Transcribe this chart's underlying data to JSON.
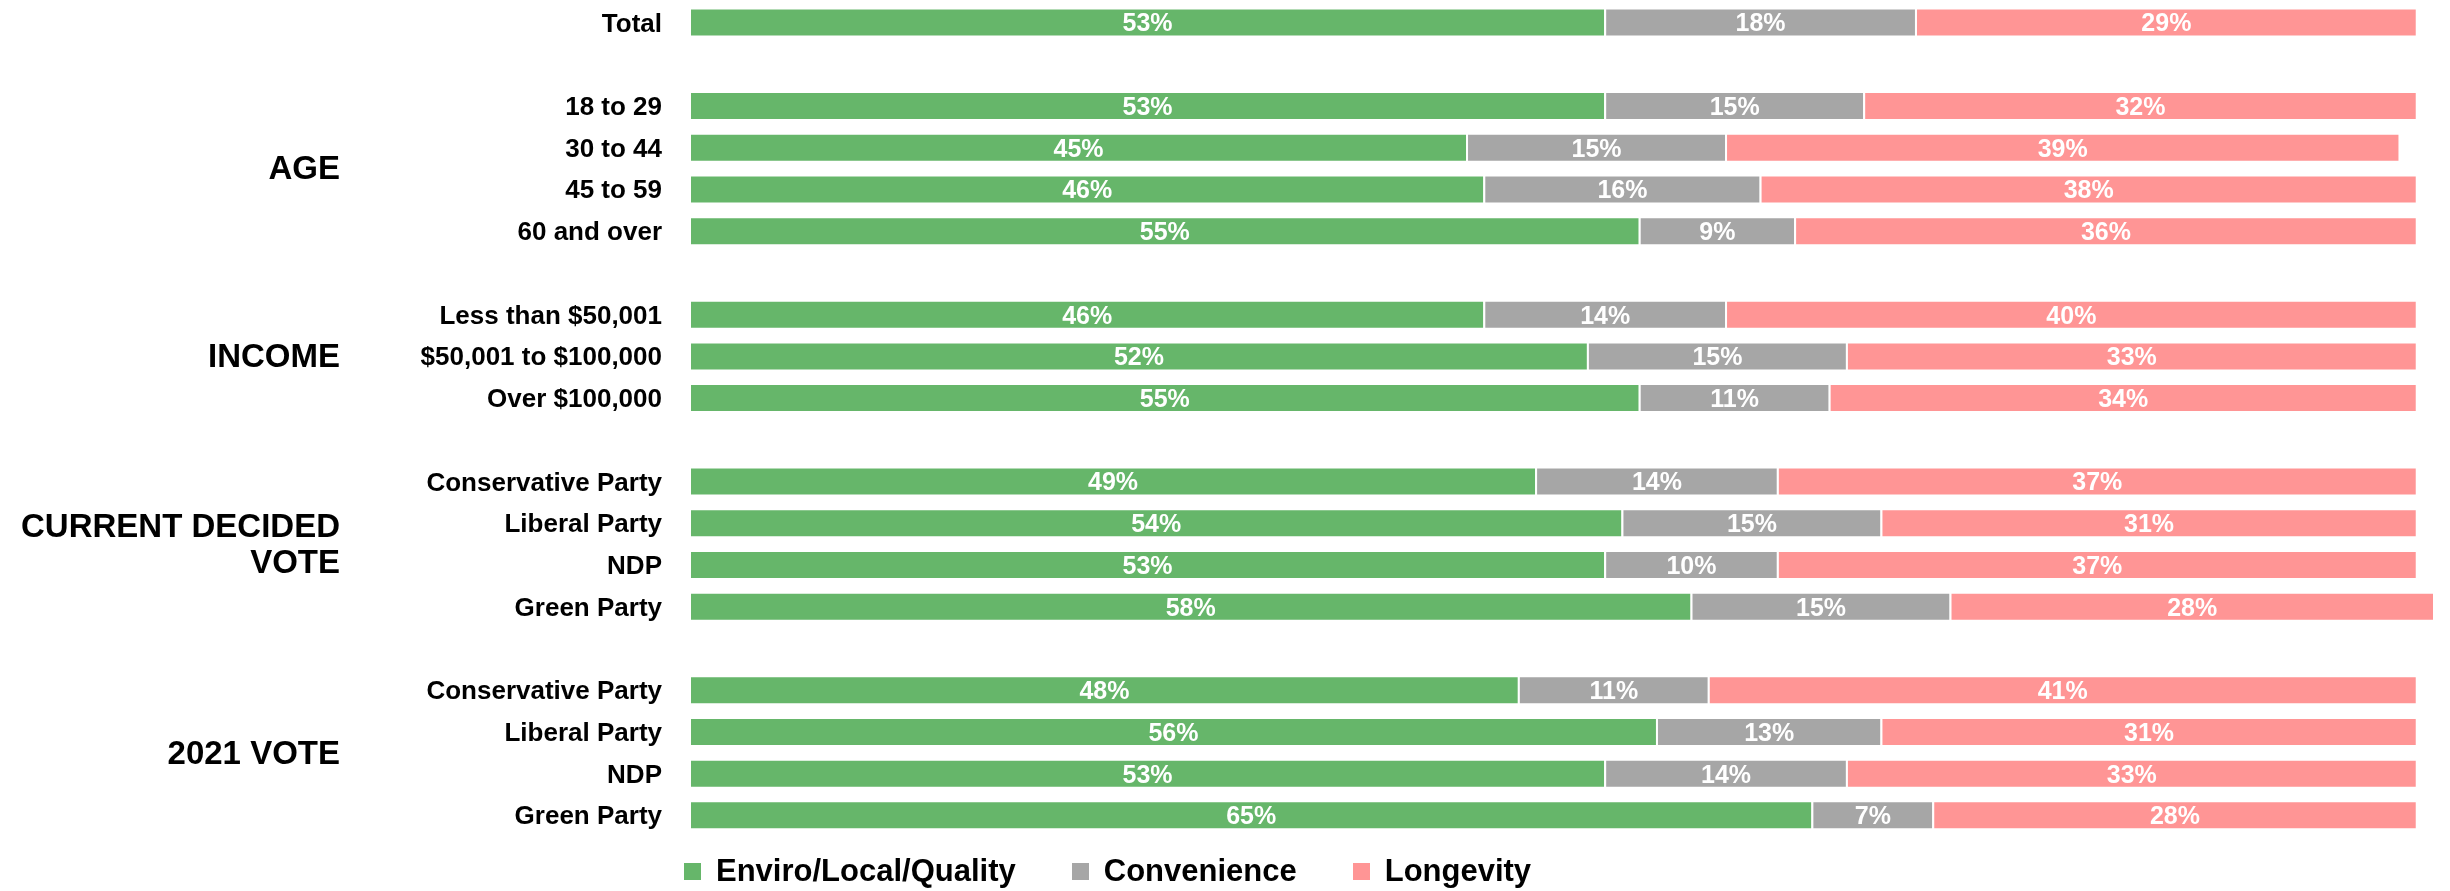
{
  "chart_data": {
    "type": "bar",
    "orientation": "horizontal",
    "stacked": true,
    "categories": [
      "Total",
      null,
      "18 to 29",
      "30 to 44",
      "45 to 59",
      "60 and over",
      null,
      "Less than $50,001",
      "$50,001 to $100,000",
      "Over $100,000",
      null,
      "Conservative Party",
      "Liberal Party",
      "NDP",
      "Green Party",
      null,
      "Conservative Party",
      "Liberal Party",
      "NDP",
      "Green Party"
    ],
    "series": [
      {
        "name": "Enviro/Local/Quality",
        "color": "#66b66a",
        "values": [
          53,
          null,
          53,
          45,
          46,
          55,
          null,
          46,
          52,
          55,
          null,
          49,
          54,
          53,
          58,
          null,
          48,
          56,
          53,
          65
        ],
        "value_labels": [
          "53%",
          null,
          "53%",
          "45%",
          "46%",
          "55%",
          null,
          "46%",
          "52%",
          "55%",
          null,
          "49%",
          "54%",
          "53%",
          "58%",
          null,
          "48%",
          "56%",
          "53%",
          "65%"
        ]
      },
      {
        "name": "Convenience",
        "color": "#a6a6a6",
        "values": [
          18,
          null,
          15,
          15,
          16,
          9,
          null,
          14,
          15,
          11,
          null,
          14,
          15,
          10,
          15,
          null,
          11,
          13,
          14,
          7
        ],
        "value_labels": [
          "18%",
          null,
          "15%",
          "15%",
          "16%",
          "9%",
          null,
          "14%",
          "15%",
          "11%",
          null,
          "14%",
          "15%",
          "10%",
          "15%",
          null,
          "11%",
          "13%",
          "14%",
          "7%"
        ]
      },
      {
        "name": "Longevity",
        "color": "#ff9595",
        "values": [
          29,
          null,
          32,
          39,
          38,
          36,
          null,
          40,
          33,
          34,
          null,
          37,
          31,
          37,
          28,
          null,
          41,
          31,
          33,
          28
        ],
        "value_labels": [
          "29%",
          null,
          "32%",
          "39%",
          "38%",
          "36%",
          null,
          "40%",
          "33%",
          "34%",
          null,
          "37%",
          "31%",
          "37%",
          "28%",
          null,
          "41%",
          "31%",
          "33%",
          "28%"
        ]
      }
    ],
    "xlim": [
      0,
      101
    ],
    "tick_labels": "y",
    "legend": "bottom",
    "annotations": [
      "AGE",
      "INCOME",
      "CURRENT DECIDED VOTE",
      "2021 VOTE"
    ]
  }
}
